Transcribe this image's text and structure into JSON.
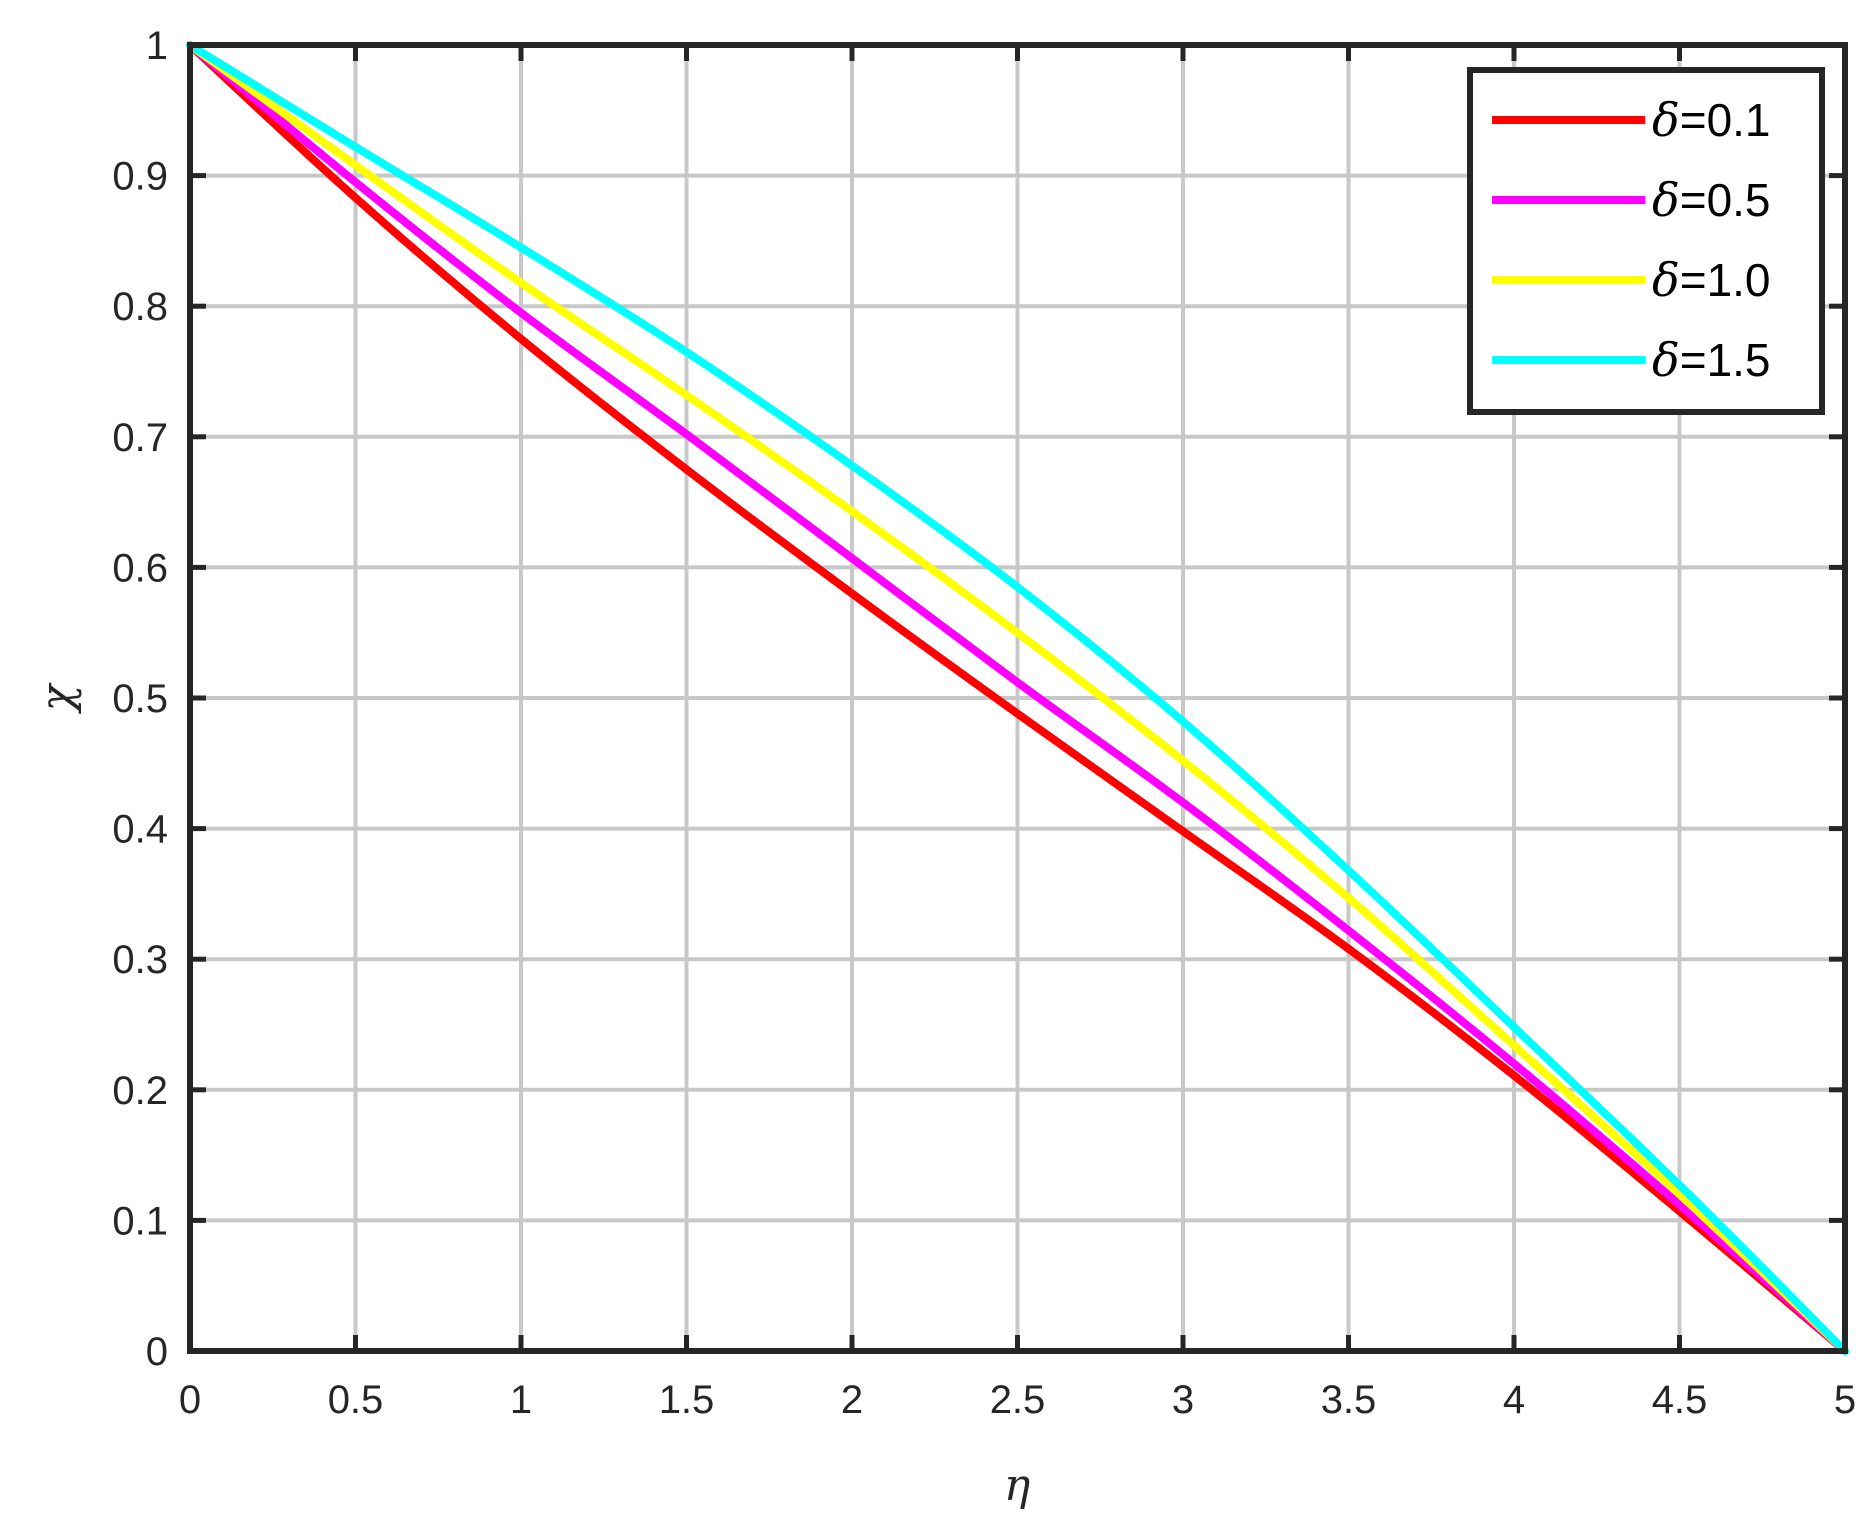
{
  "chart_data": {
    "type": "line",
    "xlabel": "η",
    "ylabel": "χ",
    "xlim": [
      0,
      5
    ],
    "ylim": [
      0,
      1
    ],
    "xticks": [
      0,
      0.5,
      1,
      1.5,
      2,
      2.5,
      3,
      3.5,
      4,
      4.5,
      5
    ],
    "xtick_labels": [
      "0",
      "0.5",
      "1",
      "1.5",
      "2",
      "2.5",
      "3",
      "3.5",
      "4",
      "4.5",
      "5"
    ],
    "yticks": [
      0,
      0.1,
      0.2,
      0.3,
      0.4,
      0.5,
      0.6,
      0.7,
      0.8,
      0.9,
      1
    ],
    "ytick_labels": [
      "0",
      "0.1",
      "0.2",
      "0.3",
      "0.4",
      "0.5",
      "0.6",
      "0.7",
      "0.8",
      "0.9",
      "1"
    ],
    "grid": true,
    "legend_position": "top-right",
    "x": [
      0,
      0.5,
      1,
      1.5,
      2,
      2.5,
      3,
      3.5,
      4,
      4.5,
      5
    ],
    "series": [
      {
        "name": "0.1",
        "color": "#ff0000",
        "values": [
          1,
          0.883,
          0.775,
          0.675,
          0.58,
          0.488,
          0.398,
          0.308,
          0.211,
          0.107,
          0
        ]
      },
      {
        "name": "0.5",
        "color": "#ff00ff",
        "values": [
          1,
          0.895,
          0.795,
          0.702,
          0.607,
          0.512,
          0.42,
          0.322,
          0.22,
          0.112,
          0
        ]
      },
      {
        "name": "1.0",
        "color": "#ffff00",
        "values": [
          1,
          0.908,
          0.818,
          0.732,
          0.643,
          0.55,
          0.452,
          0.347,
          0.234,
          0.12,
          0
        ]
      },
      {
        "name": "1.5",
        "color": "#00ffff",
        "values": [
          1,
          0.922,
          0.845,
          0.765,
          0.678,
          0.585,
          0.482,
          0.368,
          0.248,
          0.127,
          0
        ]
      }
    ],
    "legend_symbol": "δ",
    "legend_separator": "="
  }
}
